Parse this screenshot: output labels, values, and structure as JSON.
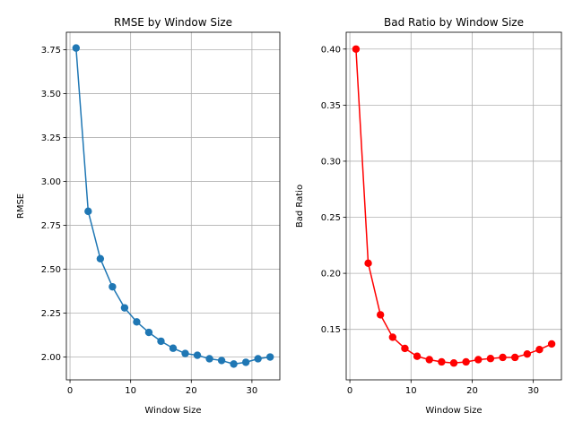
{
  "chart_data": [
    {
      "type": "line",
      "title": "RMSE by Window Size",
      "xlabel": "Window Size",
      "ylabel": "RMSE",
      "xlim": [
        -0.6,
        34.6
      ],
      "ylim": [
        1.87,
        3.85
      ],
      "xticks": [
        0,
        10,
        20,
        30
      ],
      "yticks": [
        2.0,
        2.25,
        2.5,
        2.75,
        3.0,
        3.25,
        3.5,
        3.75
      ],
      "ytick_labels": [
        "2.00",
        "2.25",
        "2.50",
        "2.75",
        "3.00",
        "3.25",
        "3.50",
        "3.75"
      ],
      "grid": true,
      "color": "#1f77b4",
      "marker": "circle",
      "x": [
        1,
        3,
        5,
        7,
        9,
        11,
        13,
        15,
        17,
        19,
        21,
        23,
        25,
        27,
        29,
        31,
        33
      ],
      "y": [
        3.76,
        2.83,
        2.56,
        2.4,
        2.28,
        2.2,
        2.14,
        2.09,
        2.05,
        2.02,
        2.01,
        1.99,
        1.98,
        1.96,
        1.97,
        1.99,
        2.0
      ]
    },
    {
      "type": "line",
      "title": "Bad Ratio by Window Size",
      "xlabel": "Window Size",
      "ylabel": "Bad Ratio",
      "xlim": [
        -0.6,
        34.6
      ],
      "ylim": [
        0.105,
        0.415
      ],
      "xticks": [
        0,
        10,
        20,
        30
      ],
      "yticks": [
        0.15,
        0.2,
        0.25,
        0.3,
        0.35,
        0.4
      ],
      "ytick_labels": [
        "0.15",
        "0.20",
        "0.25",
        "0.30",
        "0.35",
        "0.40"
      ],
      "grid": true,
      "color": "#ff0000",
      "marker": "circle",
      "x": [
        1,
        3,
        5,
        7,
        9,
        11,
        13,
        15,
        17,
        19,
        21,
        23,
        25,
        27,
        29,
        31,
        33
      ],
      "y": [
        0.4,
        0.209,
        0.163,
        0.143,
        0.133,
        0.126,
        0.123,
        0.121,
        0.12,
        0.121,
        0.123,
        0.124,
        0.125,
        0.125,
        0.128,
        0.132,
        0.137
      ]
    }
  ]
}
